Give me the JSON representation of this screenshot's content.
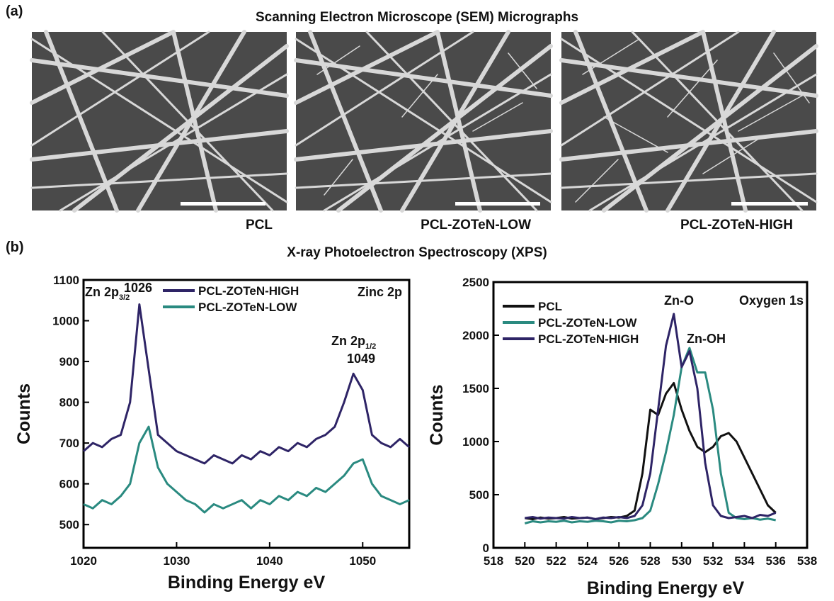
{
  "panels": [
    {
      "label": "(a)",
      "title": "Scanning Electron Microscope (SEM) Micrographs",
      "captions": [
        "PCL",
        "PCL-ZOTeN-LOW",
        "PCL-ZOTeN-HIGH"
      ]
    },
    {
      "label": "(b)",
      "title": "X-ray Photoelectron Spectroscopy (XPS)"
    }
  ],
  "chart_data": [
    {
      "type": "line",
      "xlabel": "Binding Energy eV",
      "ylabel": "Counts",
      "xlim": [
        1020,
        1055
      ],
      "ylim": [
        443,
        1100
      ],
      "xticks": [
        1020,
        1030,
        1040,
        1050
      ],
      "yticks": [
        500,
        600,
        700,
        800,
        900,
        1000,
        1100
      ],
      "annotations": [
        {
          "text": "Zn 2p",
          "subscript": "3/2"
        },
        {
          "text": "1026"
        },
        {
          "text": "Zn 2p",
          "subscript": "1/2"
        },
        {
          "text": "1049"
        },
        {
          "text": "Zinc 2p"
        }
      ],
      "x": [
        1020,
        1021,
        1022,
        1023,
        1024,
        1025,
        1026,
        1027,
        1028,
        1029,
        1030,
        1031,
        1032,
        1033,
        1034,
        1035,
        1036,
        1037,
        1038,
        1039,
        1040,
        1041,
        1042,
        1043,
        1044,
        1045,
        1046,
        1047,
        1048,
        1049,
        1050,
        1051,
        1052,
        1053,
        1054,
        1055
      ],
      "series": [
        {
          "name": "PCL-ZOTeN-HIGH",
          "color": "#2e2466",
          "values": [
            680,
            700,
            690,
            710,
            720,
            800,
            1040,
            880,
            720,
            700,
            680,
            670,
            660,
            650,
            670,
            660,
            650,
            670,
            660,
            680,
            670,
            690,
            680,
            700,
            690,
            710,
            720,
            740,
            800,
            870,
            830,
            720,
            700,
            690,
            710,
            690
          ]
        },
        {
          "name": "PCL-ZOTeN-LOW",
          "color": "#2a8a80",
          "values": [
            550,
            540,
            560,
            550,
            570,
            600,
            700,
            740,
            640,
            600,
            580,
            560,
            550,
            530,
            550,
            540,
            550,
            560,
            540,
            560,
            550,
            570,
            560,
            580,
            570,
            590,
            580,
            600,
            620,
            650,
            660,
            600,
            570,
            560,
            550,
            560
          ]
        }
      ]
    },
    {
      "type": "line",
      "xlabel": "Binding Energy eV",
      "ylabel": "Counts",
      "xlim": [
        518,
        538
      ],
      "ylim": [
        0,
        2500
      ],
      "xticks": [
        518,
        520,
        522,
        524,
        526,
        528,
        530,
        532,
        534,
        536,
        538
      ],
      "yticks": [
        0,
        500,
        1000,
        1500,
        2000,
        2500
      ],
      "annotations": [
        {
          "text": "Zn-O"
        },
        {
          "text": "Zn-OH"
        },
        {
          "text": "Oxygen 1s"
        }
      ],
      "x": [
        520,
        520.5,
        521,
        521.5,
        522,
        522.5,
        523,
        523.5,
        524,
        524.5,
        525,
        525.5,
        526,
        526.5,
        527,
        527.5,
        528,
        528.5,
        529,
        529.5,
        530,
        530.5,
        531,
        531.5,
        532,
        532.5,
        533,
        533.5,
        534,
        534.5,
        535,
        535.5,
        536
      ],
      "series": [
        {
          "name": "PCL",
          "color": "#111111",
          "values": [
            280,
            270,
            285,
            275,
            280,
            290,
            275,
            280,
            285,
            270,
            280,
            290,
            285,
            300,
            350,
            700,
            1300,
            1250,
            1450,
            1550,
            1300,
            1100,
            950,
            900,
            950,
            1050,
            1080,
            1000,
            850,
            700,
            550,
            400,
            330
          ]
        },
        {
          "name": "PCL-ZOTeN-LOW",
          "color": "#2a8a80",
          "values": [
            230,
            250,
            240,
            250,
            245,
            255,
            240,
            250,
            245,
            255,
            250,
            240,
            255,
            250,
            260,
            280,
            350,
            600,
            900,
            1250,
            1700,
            1880,
            1650,
            1650,
            1300,
            700,
            330,
            280,
            270,
            280,
            265,
            275,
            260
          ]
        },
        {
          "name": "PCL-ZOTeN-HIGH",
          "color": "#2e2466",
          "values": [
            280,
            290,
            275,
            285,
            280,
            275,
            290,
            280,
            285,
            270,
            285,
            280,
            290,
            280,
            300,
            400,
            700,
            1300,
            1900,
            2200,
            1700,
            1850,
            1500,
            800,
            400,
            300,
            280,
            290,
            300,
            280,
            310,
            300,
            330
          ]
        }
      ]
    }
  ]
}
